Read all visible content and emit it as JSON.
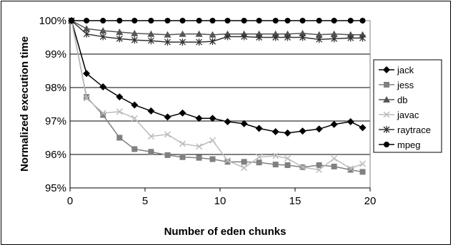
{
  "chart_data": {
    "type": "line",
    "title": "",
    "xlabel": "Number of eden chunks",
    "ylabel": "Normalized execution time",
    "xlim": [
      0,
      20
    ],
    "ylim": [
      95,
      100
    ],
    "x_ticks": [
      "0",
      "5",
      "10",
      "15",
      "20"
    ],
    "y_ticks": [
      "95%",
      "96%",
      "97%",
      "98%",
      "99%",
      "100%"
    ],
    "grid": "horizontal",
    "legend_position": "right",
    "x": [
      0.1,
      1.1,
      2.2,
      3.3,
      4.3,
      5.4,
      6.5,
      7.5,
      8.6,
      9.5,
      10.5,
      11.6,
      12.6,
      13.7,
      14.5,
      15.5,
      16.6,
      17.6,
      18.7,
      19.5
    ],
    "series": [
      {
        "name": "jack",
        "color": "#000000",
        "marker": "diamond",
        "values": [
          100,
          98.42,
          98.02,
          97.72,
          97.48,
          97.3,
          97.12,
          97.24,
          97.08,
          97.08,
          96.98,
          96.92,
          96.78,
          96.68,
          96.64,
          96.7,
          96.76,
          96.9,
          96.98,
          96.8
        ]
      },
      {
        "name": "jess",
        "color": "#808080",
        "marker": "square",
        "values": [
          100,
          97.72,
          97.18,
          96.5,
          96.16,
          96.08,
          95.98,
          95.92,
          95.9,
          95.86,
          95.78,
          95.78,
          95.76,
          95.7,
          95.68,
          95.62,
          95.68,
          95.64,
          95.54,
          95.48
        ]
      },
      {
        "name": "db",
        "color": "#555555",
        "marker": "triangle",
        "values": [
          100,
          99.76,
          99.7,
          99.66,
          99.62,
          99.6,
          99.58,
          99.6,
          99.6,
          99.58,
          99.6,
          99.6,
          99.6,
          99.6,
          99.6,
          99.62,
          99.58,
          99.6,
          99.58,
          99.58
        ]
      },
      {
        "name": "javac",
        "color": "#bbbbbb",
        "marker": "x",
        "values": [
          100,
          97.68,
          97.24,
          97.28,
          97.08,
          96.54,
          96.6,
          96.32,
          96.24,
          96.42,
          95.82,
          95.6,
          95.92,
          95.96,
          95.88,
          95.62,
          95.54,
          95.88,
          95.58,
          95.72
        ]
      },
      {
        "name": "raytrace",
        "color": "#333333",
        "marker": "star",
        "values": [
          100,
          99.6,
          99.52,
          99.46,
          99.42,
          99.4,
          99.36,
          99.36,
          99.36,
          99.38,
          99.52,
          99.52,
          99.5,
          99.5,
          99.5,
          99.5,
          99.44,
          99.46,
          99.48,
          99.48
        ]
      },
      {
        "name": "mpeg",
        "color": "#000000",
        "marker": "circle",
        "values": [
          100,
          100,
          100,
          100,
          100,
          100,
          100,
          100,
          100,
          100,
          100,
          100,
          100,
          100,
          100,
          100,
          100,
          100,
          100,
          100
        ]
      }
    ]
  }
}
